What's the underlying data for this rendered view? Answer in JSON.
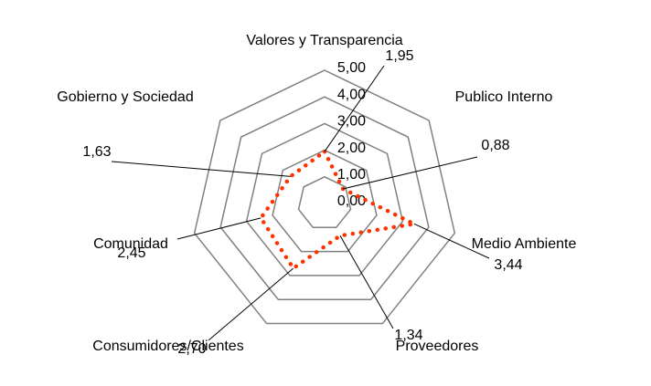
{
  "chart_data": {
    "type": "radar",
    "categories": [
      "Valores y Transparencia",
      "Publico Interno",
      "Medio Ambiente",
      "Proveedores",
      "Consumidores/Clientes",
      "Comunidad",
      "Gobierno y Sociedad"
    ],
    "values": [
      1.95,
      0.88,
      3.44,
      1.34,
      2.7,
      2.45,
      1.63
    ],
    "value_labels": [
      "1,95",
      "0,88",
      "3,44",
      "1,34",
      "2,70",
      "2,45",
      "1,63"
    ],
    "color": "#ff3300",
    "ylim": [
      0,
      5
    ],
    "yticks": [
      {
        "value": 0,
        "label": "0,00"
      },
      {
        "value": 1,
        "label": "1,00"
      },
      {
        "value": 2,
        "label": "2,00"
      },
      {
        "value": 3,
        "label": "3,00"
      },
      {
        "value": 4,
        "label": "4,00"
      },
      {
        "value": 5,
        "label": "5,00"
      }
    ],
    "grid": true
  }
}
